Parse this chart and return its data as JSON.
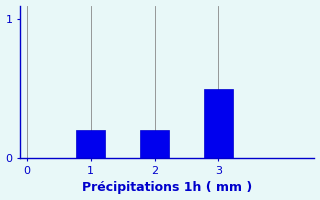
{
  "categories": [
    1,
    2,
    3
  ],
  "values": [
    0.2,
    0.2,
    0.5
  ],
  "bar_color": "#0000ee",
  "bar_edge_color": "#0000cc",
  "background_color": "#e8f8f8",
  "xlabel": "Précipitations 1h ( mm )",
  "xlabel_color": "#0000cc",
  "xlabel_fontsize": 9,
  "tick_color": "#0000cc",
  "tick_fontsize": 8,
  "ylim": [
    0,
    1.1
  ],
  "xlim": [
    -0.1,
    4.5
  ],
  "yticks": [
    0,
    1
  ],
  "xticks": [
    0,
    1,
    2,
    3
  ],
  "grid_color": "#888888",
  "grid_linewidth": 0.6,
  "bar_width": 0.45,
  "figure_bg": "#e8f8f8",
  "spine_color": "#0000cc",
  "spine_linewidth": 1.0
}
